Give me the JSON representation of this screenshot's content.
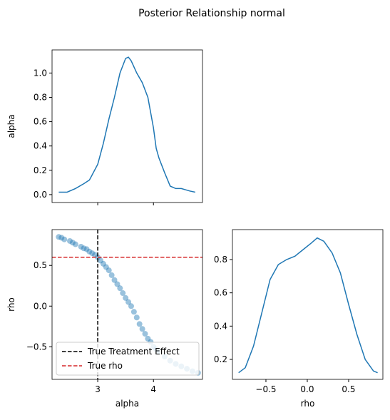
{
  "title": "Posterior Relationship normal",
  "chart_data": [
    {
      "type": "line",
      "ylabel": "alpha",
      "color": "#1f77b4",
      "x": [
        2.3,
        2.45,
        2.6,
        2.75,
        2.85,
        3.0,
        3.1,
        3.2,
        3.3,
        3.4,
        3.5,
        3.55,
        3.6,
        3.7,
        3.8,
        3.9,
        4.0,
        4.05,
        4.1,
        4.2,
        4.3,
        4.4,
        4.5,
        4.65,
        4.75
      ],
      "values": [
        0.02,
        0.02,
        0.05,
        0.09,
        0.12,
        0.25,
        0.42,
        0.62,
        0.8,
        1.0,
        1.12,
        1.13,
        1.1,
        1.0,
        0.92,
        0.8,
        0.55,
        0.38,
        0.3,
        0.18,
        0.07,
        0.05,
        0.05,
        0.03,
        0.02
      ],
      "xlim": [
        2.18,
        4.88
      ],
      "ylim": [
        -0.065,
        1.19
      ],
      "xticks": [
        3,
        4
      ],
      "show_xtick_labels": false,
      "yticks": [
        {
          "value": 0,
          "label": "0.0"
        },
        0.2,
        0.4,
        0.6,
        0.8,
        {
          "value": 1,
          "label": "1.0"
        }
      ]
    },
    {
      "type": "scatter",
      "xlabel": "alpha",
      "ylabel": "rho",
      "color": "#1f77b4",
      "x": [
        2.3,
        2.35,
        2.4,
        2.5,
        2.55,
        2.6,
        2.7,
        2.75,
        2.8,
        2.85,
        2.9,
        2.95,
        3.0,
        3.05,
        3.1,
        3.15,
        3.2,
        3.25,
        3.3,
        3.35,
        3.4,
        3.45,
        3.5,
        3.55,
        3.6,
        3.65,
        3.7,
        3.75,
        3.8,
        3.85,
        3.9,
        3.95,
        4.0,
        4.05,
        4.1,
        4.2,
        4.3,
        4.4,
        4.5,
        4.6,
        4.7,
        4.8
      ],
      "values": [
        0.85,
        0.84,
        0.82,
        0.8,
        0.78,
        0.76,
        0.73,
        0.71,
        0.7,
        0.67,
        0.65,
        0.63,
        0.6,
        0.56,
        0.52,
        0.48,
        0.44,
        0.38,
        0.32,
        0.27,
        0.22,
        0.16,
        0.1,
        0.05,
        0.0,
        -0.07,
        -0.14,
        -0.22,
        -0.28,
        -0.34,
        -0.4,
        -0.44,
        -0.5,
        -0.53,
        -0.56,
        -0.62,
        -0.67,
        -0.71,
        -0.74,
        -0.77,
        -0.8,
        -0.82
      ],
      "xlim": [
        2.18,
        4.88
      ],
      "ylim": [
        -0.9,
        0.94
      ],
      "xticks": [
        3,
        4
      ],
      "yticks": [
        {
          "value": -0.5,
          "label": "−0.5"
        },
        {
          "value": 0,
          "label": "0.0"
        },
        0.5
      ],
      "reference_lines": [
        {
          "name": "True Treatment Effect",
          "axis": "x",
          "value": 3,
          "color": "#000000"
        },
        {
          "name": "True rho",
          "axis": "y",
          "value": 0.6,
          "color": "#d62728"
        }
      ],
      "legend": "lower left"
    },
    {
      "type": "line",
      "xlabel": "rho",
      "color": "#1f77b4",
      "x": [
        -0.83,
        -0.75,
        -0.65,
        -0.55,
        -0.45,
        -0.35,
        -0.25,
        -0.15,
        -0.05,
        0.05,
        0.12,
        0.2,
        0.3,
        0.4,
        0.5,
        0.6,
        0.7,
        0.8,
        0.85
      ],
      "values": [
        0.12,
        0.15,
        0.28,
        0.48,
        0.68,
        0.77,
        0.8,
        0.82,
        0.86,
        0.9,
        0.93,
        0.91,
        0.84,
        0.72,
        0.53,
        0.35,
        0.2,
        0.13,
        0.12
      ],
      "xlim": [
        -0.905,
        0.914
      ],
      "ylim": [
        0.08,
        0.98
      ],
      "xticks": [
        {
          "value": -0.5,
          "label": "−0.5"
        },
        {
          "value": 0,
          "label": "0.0"
        },
        0.5
      ],
      "yticks": [
        0.2,
        0.4,
        0.6,
        0.8
      ]
    }
  ]
}
